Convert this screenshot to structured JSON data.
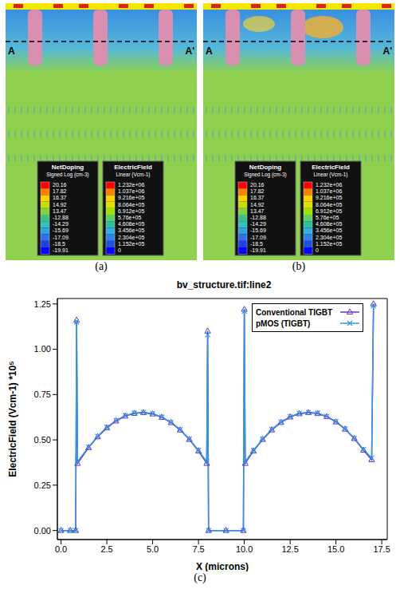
{
  "captions": [
    "(a)",
    "(b)",
    "(c)"
  ],
  "figure": {
    "panels": [
      {
        "label": "(a)",
        "cut_labels": [
          "A",
          "A'"
        ]
      },
      {
        "label": "(b)",
        "cut_labels": [
          "A",
          "A'"
        ]
      }
    ],
    "colorbars": [
      {
        "title": "NetDoping",
        "subtitle": "Signed Log (cm-3)",
        "ticks": [
          20.16,
          17.82,
          16.37,
          14.92,
          13.47,
          -12.88,
          -14.29,
          -15.69,
          -17.09,
          -18.5,
          -19.91
        ]
      },
      {
        "title": "ElectricField",
        "subtitle": "Linear (Vcm-1)",
        "ticks": [
          {
            "value": 1232000,
            "label": "1.232e+06"
          },
          {
            "value": 1037000,
            "label": "1.037e+06"
          },
          {
            "value": 921600,
            "label": "9.216e+05"
          },
          {
            "value": 806400,
            "label": "8.064e+05"
          },
          {
            "value": 691200,
            "label": "6.912e+05"
          },
          {
            "value": 576000,
            "label": "5.76e+05"
          },
          {
            "value": 460800,
            "label": "4.608e+05"
          },
          {
            "value": 345600,
            "label": "3.456e+05"
          },
          {
            "value": 230400,
            "label": "2.304e+05"
          },
          {
            "value": 115200,
            "label": "1.152e+05"
          },
          0
        ]
      }
    ]
  },
  "chart_data": {
    "type": "line",
    "title": "bv_structure.tif:line2",
    "x_label": "X (microns)",
    "y_label": "ElectricField (Vcm-1) *10⁵",
    "x": [
      0,
      0.5,
      0.8,
      0.85,
      0.9,
      1.5,
      2,
      2.5,
      3,
      3.5,
      4,
      4.5,
      5,
      5.5,
      6,
      6.5,
      7,
      7.5,
      7.95,
      8.0,
      8.05,
      9.0,
      9.95,
      10.0,
      10.05,
      10.5,
      11,
      11.5,
      12,
      12.5,
      13,
      13.5,
      14,
      14.5,
      15,
      15.5,
      16,
      16.5,
      16.95,
      17.05
    ],
    "series": [
      {
        "name": "Conventional TIGBT",
        "color": "#6633cc",
        "marker": "triangle",
        "line_style": "solid",
        "values": [
          0,
          0,
          0,
          1.16,
          0.37,
          0.457,
          0.517,
          0.566,
          0.604,
          0.631,
          0.646,
          0.65,
          0.643,
          0.624,
          0.595,
          0.554,
          0.502,
          0.438,
          0.37,
          1.1,
          0,
          0,
          0,
          1.22,
          0.37,
          0.438,
          0.502,
          0.555,
          0.596,
          0.626,
          0.644,
          0.65,
          0.645,
          0.628,
          0.599,
          0.559,
          0.507,
          0.443,
          0.39,
          1.25
        ]
      },
      {
        "name": "pMOS (TIGBT)",
        "color": "#3399dd",
        "marker": "x",
        "line_style": "solid",
        "values": [
          0,
          0,
          0,
          1.15,
          0.38,
          0.46,
          0.52,
          0.57,
          0.607,
          0.634,
          0.648,
          0.652,
          0.645,
          0.626,
          0.597,
          0.557,
          0.505,
          0.442,
          0.38,
          1.08,
          0,
          0,
          0,
          1.21,
          0.38,
          0.442,
          0.505,
          0.558,
          0.599,
          0.629,
          0.647,
          0.652,
          0.648,
          0.63,
          0.601,
          0.561,
          0.51,
          0.447,
          0.4,
          1.24
        ]
      }
    ],
    "xlim": [
      -0.2,
      17.8
    ],
    "xticks": [
      {
        "value": 0,
        "label": "0.0"
      },
      2.5,
      {
        "value": 5,
        "label": "5.0"
      },
      7.5,
      {
        "value": 10,
        "label": "10.0"
      },
      12.5,
      {
        "value": 15,
        "label": "15.0"
      },
      17.5
    ],
    "ylim": [
      -0.05,
      1.28
    ],
    "yticks": [
      {
        "value": 0,
        "label": "0.00"
      },
      {
        "value": 0.25,
        "label": "0.25"
      },
      {
        "value": 0.5,
        "label": "0.50"
      },
      {
        "value": 0.75,
        "label": "0.75"
      },
      {
        "value": 1,
        "label": "1.00"
      },
      {
        "value": 1.25,
        "label": "1.25"
      }
    ],
    "grid": false,
    "legend": "upper right"
  }
}
